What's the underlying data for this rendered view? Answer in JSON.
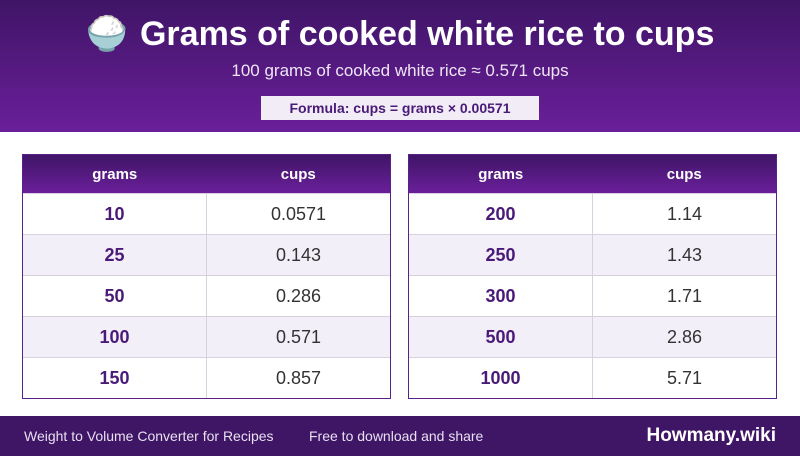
{
  "header": {
    "icon": "🍚",
    "title": "Grams of cooked white rice to cups",
    "subtitle": "100 grams of cooked white rice ≈ 0.571 cups",
    "formula": "Formula: cups = grams × 0.00571"
  },
  "tables": [
    {
      "columns": [
        "grams",
        "cups"
      ],
      "rows": [
        [
          "10",
          "0.0571"
        ],
        [
          "25",
          "0.143"
        ],
        [
          "50",
          "0.286"
        ],
        [
          "100",
          "0.571"
        ],
        [
          "150",
          "0.857"
        ]
      ]
    },
    {
      "columns": [
        "grams",
        "cups"
      ],
      "rows": [
        [
          "200",
          "1.14"
        ],
        [
          "250",
          "1.43"
        ],
        [
          "300",
          "1.71"
        ],
        [
          "500",
          "2.86"
        ],
        [
          "1000",
          "5.71"
        ]
      ]
    }
  ],
  "footer": {
    "left": "Weight to Volume Converter for Recipes",
    "middle": "Free to download and share",
    "brand": "Howmany.wiki"
  }
}
